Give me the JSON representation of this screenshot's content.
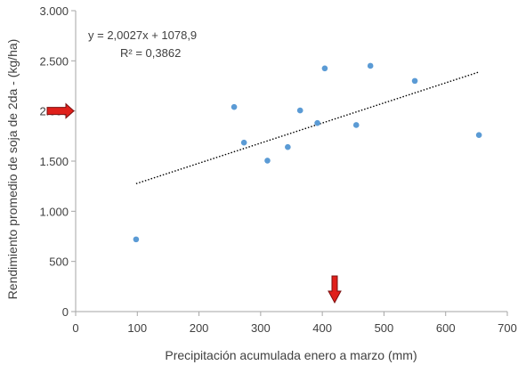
{
  "chart_data": {
    "type": "scatter",
    "title": "",
    "xlabel": "Precipitación acumulada enero a marzo (mm)",
    "ylabel": "Rendimiento promedio de soja de 2da - (kg/ha)",
    "xlim": [
      0,
      700
    ],
    "ylim": [
      0,
      3000
    ],
    "x_ticks": [
      0,
      100,
      200,
      300,
      400,
      500,
      600,
      700
    ],
    "x_tick_labels": [
      "0",
      "100",
      "200",
      "300",
      "400",
      "500",
      "600",
      "700"
    ],
    "y_ticks": [
      0,
      500,
      1000,
      1500,
      2000,
      2500,
      3000
    ],
    "y_tick_labels": [
      "0",
      "500",
      "1.000",
      "1.500",
      "2.000",
      "2.500",
      "3.000"
    ],
    "grid": false,
    "series": [
      {
        "points": [
          {
            "x": 98,
            "y": 720
          },
          {
            "x": 257,
            "y": 2040
          },
          {
            "x": 273,
            "y": 1685
          },
          {
            "x": 311,
            "y": 1505
          },
          {
            "x": 344,
            "y": 1640
          },
          {
            "x": 364,
            "y": 2005
          },
          {
            "x": 392,
            "y": 1880
          },
          {
            "x": 404,
            "y": 2425
          },
          {
            "x": 455,
            "y": 1860
          },
          {
            "x": 478,
            "y": 2450
          },
          {
            "x": 550,
            "y": 2300
          },
          {
            "x": 654,
            "y": 1760
          }
        ]
      }
    ],
    "trendline": {
      "type": "linear",
      "slope": 2.0027,
      "intercept": 1078.9,
      "x_range": [
        98,
        654
      ],
      "style": "dotted"
    },
    "annotations": {
      "equation": "y = 2,0027x + 1078,9",
      "r_squared": "R² = 0,3862"
    },
    "markers": {
      "y_arrow_value": 2000,
      "x_arrow_value": 420
    },
    "colors": {
      "points": "#5b9bd5",
      "trendline": "#000000",
      "axis": "#a6a6a6",
      "arrow_fill": "#e0201b",
      "arrow_stroke": "#7a1010"
    }
  }
}
